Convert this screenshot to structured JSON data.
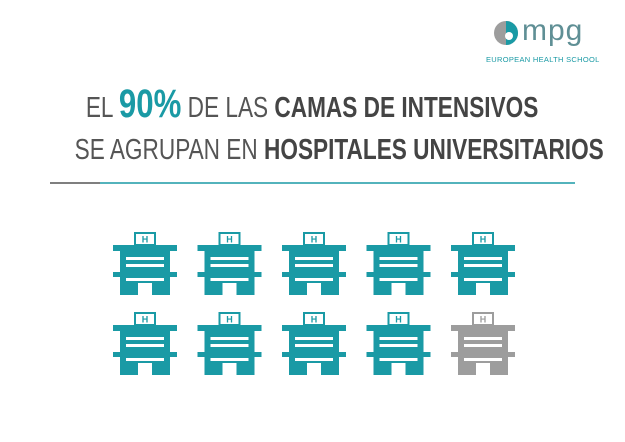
{
  "logo": {
    "mark": "mpg",
    "tagline": "EUROPEAN HEALTH SCHOOL"
  },
  "headline": {
    "line1": [
      "EL ",
      "90%",
      " DE LAS ",
      "CAMAS DE INTENSIVOS"
    ],
    "line2": [
      "SE AGRUPAN EN ",
      "HOSPITALES UNIVERSITARIOS"
    ]
  },
  "pictogram": {
    "icon_label": "H",
    "total": 10,
    "highlighted": 9,
    "color": "#1a9aa5",
    "muted_color": "#9d9d9d"
  }
}
